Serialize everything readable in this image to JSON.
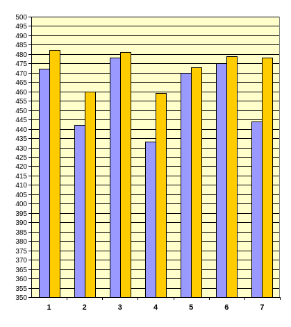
{
  "chart_data": {
    "type": "bar",
    "title": "",
    "xlabel": "",
    "ylabel": "",
    "categories": [
      "1",
      "2",
      "3",
      "4",
      "5",
      "6",
      "7"
    ],
    "series": [
      {
        "values": [
          472,
          442,
          478,
          433,
          470,
          475,
          444
        ]
      },
      {
        "values": [
          482,
          460,
          481,
          459,
          473,
          479,
          478
        ]
      }
    ],
    "ylim": [
      350,
      500
    ],
    "ytick_step": 5,
    "grid": true,
    "legend": "none",
    "colors": {
      "plot_background": "#ffffcc",
      "series": [
        "#9999ff",
        "#ffcc00"
      ],
      "gridline": "#000000",
      "bar_outline": "#000000"
    }
  }
}
